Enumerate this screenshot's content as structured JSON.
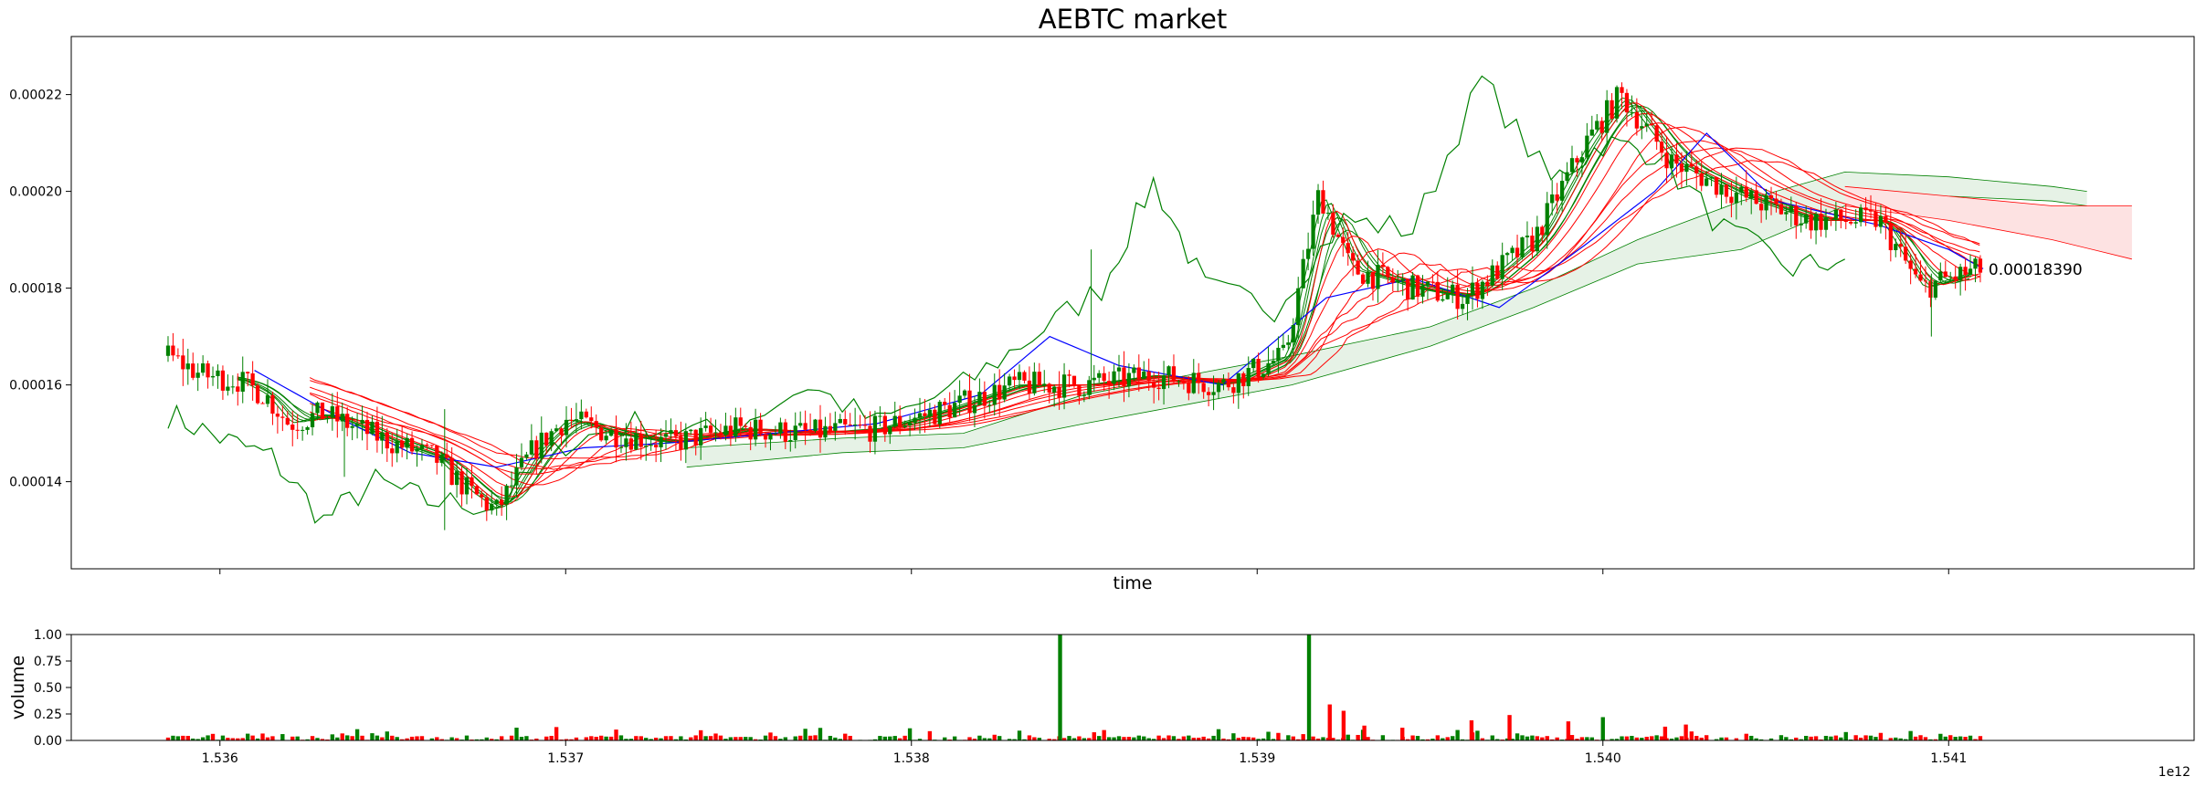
{
  "chart_data": [
    {
      "type": "line",
      "title": "AEBTC market",
      "xlabel": "time",
      "ylabel": "",
      "xlim": [
        1535570000000,
        1541710000000
      ],
      "ylim": [
        0.000122,
        0.000232
      ],
      "yticks": [
        "0.00014",
        "0.00016",
        "0.00018",
        "0.00020",
        "0.00022"
      ],
      "ytick_values": [
        0.00014,
        0.00016,
        0.00018,
        0.0002,
        0.00022
      ],
      "xtick_values": [
        1536000000000,
        1537000000000,
        1538000000000,
        1539000000000,
        1540000000000,
        1541000000000
      ],
      "last_price_label": "0.00018390",
      "last_price_value": 0.0001839,
      "last_price_time": 1541110000000,
      "grid": false,
      "candles": {
        "up_color": "#008000",
        "down_color": "#ff0000",
        "keypoints": [
          [
            1535850000000,
            0.000166
          ],
          [
            1535950000000,
            0.000162
          ],
          [
            1536050000000,
            0.000161
          ],
          [
            1536130000000,
            0.000158
          ],
          [
            1536200000000,
            0.000152
          ],
          [
            1536300000000,
            0.000154
          ],
          [
            1536400000000,
            0.000151
          ],
          [
            1536500000000,
            0.000148
          ],
          [
            1536620000000,
            0.000145
          ],
          [
            1536720000000,
            0.000138
          ],
          [
            1536800000000,
            0.000134
          ],
          [
            1536900000000,
            0.000146
          ],
          [
            1537000000000,
            0.000153
          ],
          [
            1537130000000,
            0.00015
          ],
          [
            1537300000000,
            0.000148
          ],
          [
            1537500000000,
            0.000151
          ],
          [
            1537700000000,
            0.00015
          ],
          [
            1537900000000,
            0.000151
          ],
          [
            1538100000000,
            0.000155
          ],
          [
            1538300000000,
            0.00016
          ],
          [
            1538500000000,
            0.00016
          ],
          [
            1538700000000,
            0.000162
          ],
          [
            1538900000000,
            0.00016
          ],
          [
            1539080000000,
            0.000166
          ],
          [
            1539180000000,
            0.0002
          ],
          [
            1539270000000,
            0.000184
          ],
          [
            1539450000000,
            0.00018
          ],
          [
            1539600000000,
            0.000178
          ],
          [
            1539800000000,
            0.00019
          ],
          [
            1539950000000,
            0.00021
          ],
          [
            1540050000000,
            0.00022
          ],
          [
            1540200000000,
            0.000206
          ],
          [
            1540400000000,
            0.000199
          ],
          [
            1540600000000,
            0.000194
          ],
          [
            1540800000000,
            0.000194
          ],
          [
            1540920000000,
            0.00018
          ],
          [
            1541000000000,
            0.000182
          ],
          [
            1541100000000,
            0.000184
          ]
        ]
      },
      "series": [
        {
          "color": "#0000ff",
          "width": 1.2,
          "points": [
            [
              1536100000000,
              0.000163
            ],
            [
              1536350000000,
              0.000153
            ],
            [
              1536550000000,
              0.000146
            ],
            [
              1536800000000,
              0.000143
            ],
            [
              1537050000000,
              0.000147
            ],
            [
              1537300000000,
              0.000148
            ],
            [
              1537600000000,
              0.00015
            ],
            [
              1537900000000,
              0.000152
            ],
            [
              1538200000000,
              0.000158
            ],
            [
              1538400000000,
              0.00017
            ],
            [
              1538600000000,
              0.000164
            ],
            [
              1538900000000,
              0.00016
            ],
            [
              1539200000000,
              0.000178
            ],
            [
              1539450000000,
              0.000182
            ],
            [
              1539700000000,
              0.000176
            ],
            [
              1539950000000,
              0.000189
            ],
            [
              1540150000000,
              0.0002
            ],
            [
              1540300000000,
              0.000212
            ],
            [
              1540500000000,
              0.000198
            ],
            [
              1540800000000,
              0.000193
            ],
            [
              1541000000000,
              0.000188
            ],
            [
              1541100000000,
              0.000184
            ]
          ]
        },
        {
          "color": "#008000",
          "width": 1.2,
          "points": [
            [
              1535850000000,
              0.000154
            ],
            [
              1536000000000,
              0.000149
            ],
            [
              1536150000000,
              0.000145
            ],
            [
              1536300000000,
              0.000132
            ],
            [
              1536450000000,
              0.00014
            ],
            [
              1536600000000,
              0.000136
            ],
            [
              1536800000000,
              0.000135
            ],
            [
              1537000000000,
              0.000148
            ],
            [
              1537200000000,
              0.000152
            ],
            [
              1537450000000,
              0.00015
            ],
            [
              1537700000000,
              0.00016
            ],
            [
              1537900000000,
              0.000152
            ],
            [
              1538150000000,
              0.00016
            ],
            [
              1538350000000,
              0.00017
            ],
            [
              1538550000000,
              0.00018
            ],
            [
              1538700000000,
              0.000202
            ],
            [
              1538850000000,
              0.00018
            ],
            [
              1539050000000,
              0.000176
            ],
            [
              1539250000000,
              0.000194
            ],
            [
              1539450000000,
              0.000192
            ],
            [
              1539650000000,
              0.000223
            ],
            [
              1539850000000,
              0.000202
            ],
            [
              1540000000000,
              0.00021
            ],
            [
              1540150000000,
              0.000208
            ],
            [
              1540350000000,
              0.000192
            ],
            [
              1540550000000,
              0.000184
            ],
            [
              1540700000000,
              0.000186
            ]
          ]
        }
      ],
      "ema_ribbons": [
        {
          "color": "#008000",
          "count": 6,
          "start": 1536050000000,
          "end": 1541060000000
        },
        {
          "color": "#ff0000",
          "count": 8,
          "start": 1536260000000,
          "end": 1541090000000
        }
      ],
      "clouds": [
        {
          "fill": "#e6f2e6",
          "edge": "#008000",
          "upper": [
            [
              1537350000000,
              0.000147
            ],
            [
              1537800000000,
              0.000149
            ],
            [
              1538150000000,
              0.00015
            ],
            [
              1538500000000,
              0.000158
            ],
            [
              1538800000000,
              0.000162
            ],
            [
              1539100000000,
              0.000166
            ],
            [
              1539500000000,
              0.000172
            ],
            [
              1539800000000,
              0.00018
            ],
            [
              1540100000000,
              0.00019
            ],
            [
              1540400000000,
              0.000198
            ],
            [
              1540700000000,
              0.000204
            ],
            [
              1541000000000,
              0.000203
            ],
            [
              1541300000000,
              0.000201
            ],
            [
              1541400000000,
              0.0002
            ]
          ],
          "lower": [
            [
              1537350000000,
              0.000143
            ],
            [
              1537800000000,
              0.000146
            ],
            [
              1538150000000,
              0.000147
            ],
            [
              1538500000000,
              0.000152
            ],
            [
              1538800000000,
              0.000156
            ],
            [
              1539100000000,
              0.00016
            ],
            [
              1539500000000,
              0.000168
            ],
            [
              1539800000000,
              0.000176
            ],
            [
              1540100000000,
              0.000185
            ],
            [
              1540400000000,
              0.000188
            ],
            [
              1540700000000,
              0.000197
            ],
            [
              1541000000000,
              0.000199
            ],
            [
              1541300000000,
              0.000198
            ],
            [
              1541400000000,
              0.000197
            ]
          ]
        },
        {
          "fill": "#fde2e2",
          "edge": "#ff0000",
          "upper": [
            [
              1540700000000,
              0.000201
            ],
            [
              1541000000000,
              0.000199
            ],
            [
              1541300000000,
              0.000197
            ],
            [
              1541530000000,
              0.000197
            ]
          ],
          "lower": [
            [
              1540700000000,
              0.000197
            ],
            [
              1541000000000,
              0.000194
            ],
            [
              1541300000000,
              0.00019
            ],
            [
              1541530000000,
              0.000186
            ]
          ]
        }
      ]
    },
    {
      "type": "bar",
      "title": "",
      "xlabel": "",
      "ylabel": "volume",
      "xlim": [
        1535570000000,
        1541710000000
      ],
      "ylim": [
        0.0,
        1.0
      ],
      "yticks": [
        "0.00",
        "0.25",
        "0.50",
        "0.75",
        "1.00"
      ],
      "ytick_values": [
        0.0,
        0.25,
        0.5,
        0.75,
        1.0
      ],
      "xticks": [
        "1.536",
        "1.537",
        "1.538",
        "1.539",
        "1.540",
        "1.541"
      ],
      "xtick_values": [
        1536000000000,
        1537000000000,
        1538000000000,
        1539000000000,
        1540000000000,
        1541000000000
      ],
      "offset_label": "1e12",
      "up_color": "#008000",
      "down_color": "#ff0000",
      "spikes": [
        [
          1538430000000,
          1.0
        ],
        [
          1539150000000,
          1.0
        ],
        [
          1539210000000,
          0.34
        ],
        [
          1539250000000,
          0.28
        ],
        [
          1539310000000,
          0.14
        ],
        [
          1539420000000,
          0.12
        ],
        [
          1539620000000,
          0.19
        ],
        [
          1539730000000,
          0.24
        ],
        [
          1539900000000,
          0.18
        ],
        [
          1540000000000,
          0.22
        ],
        [
          1540180000000,
          0.13
        ],
        [
          1540240000000,
          0.15
        ]
      ]
    }
  ]
}
